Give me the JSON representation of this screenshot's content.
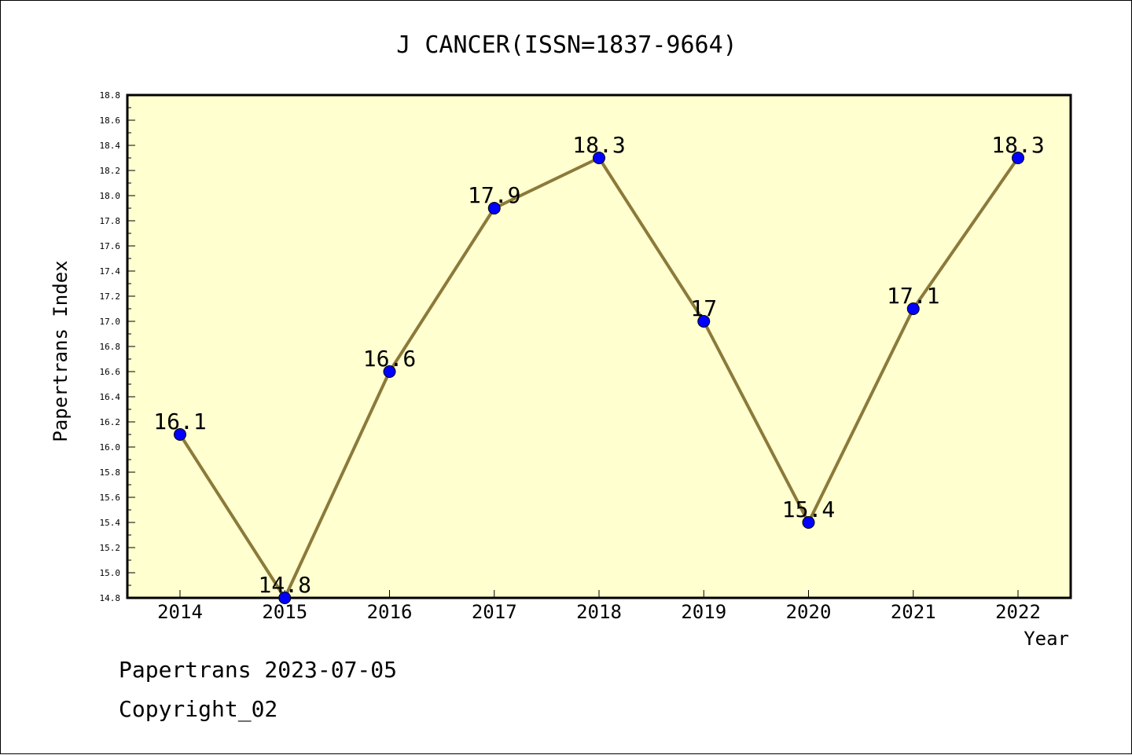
{
  "chart_data": {
    "type": "line",
    "title": "J CANCER(ISSN=1837-9664)",
    "xlabel": "Year",
    "ylabel": "Papertrans Index",
    "x": [
      "2014",
      "2015",
      "2016",
      "2017",
      "2018",
      "2019",
      "2020",
      "2021",
      "2022"
    ],
    "series": [
      {
        "values": [
          16.1,
          14.8,
          16.6,
          17.9,
          18.3,
          17.0,
          15.4,
          17.1,
          18.3
        ],
        "labels": [
          "16.1",
          "14.8",
          "16.6",
          "17.9",
          "18.3",
          "17",
          "15.4",
          "17.1",
          "18.3"
        ]
      }
    ],
    "ylim": [
      14.8,
      18.8
    ],
    "yticks": [
      "14.8",
      "15.0",
      "15.2",
      "15.4",
      "15.6",
      "15.8",
      "16.0",
      "16.2",
      "16.4",
      "16.6",
      "16.8",
      "17.0",
      "17.2",
      "17.4",
      "17.6",
      "17.8",
      "18.0",
      "18.2",
      "18.4",
      "18.6",
      "18.8"
    ],
    "grid": false,
    "colors": {
      "plot_background": "#ffffd0",
      "line": "#8b7a3a",
      "marker": "#0000ff"
    }
  },
  "footer": {
    "stamp": "Papertrans 2023-07-05",
    "copyright": "Copyright_02"
  }
}
